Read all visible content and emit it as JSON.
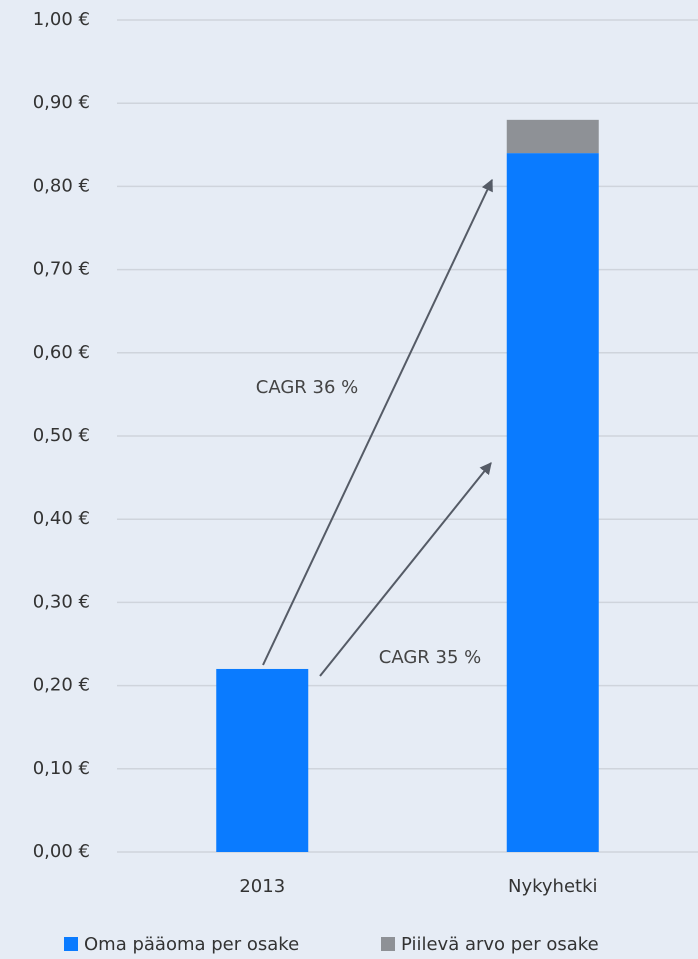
{
  "chart_data": {
    "type": "stacked_bar",
    "categories": [
      "2013",
      "Nykyhetki"
    ],
    "series": [
      {
        "name": "Oma pääoma per osake",
        "color": "#0a7bff",
        "values": [
          0.22,
          0.84
        ]
      },
      {
        "name": "Piilevä arvo per osake",
        "color": "#8e9196",
        "values": [
          0,
          0.04
        ]
      }
    ],
    "ylim": [
      0,
      1
    ],
    "yticks": [
      {
        "value": 0,
        "label": "0,00 €"
      },
      {
        "value": 0.1,
        "label": "0,10 €"
      },
      {
        "value": 0.2,
        "label": "0,20 €"
      },
      {
        "value": 0.3,
        "label": "0,30 €"
      },
      {
        "value": 0.4,
        "label": "0,40 €"
      },
      {
        "value": 0.5,
        "label": "0,50 €"
      },
      {
        "value": 0.6,
        "label": "0,60 €"
      },
      {
        "value": 0.7,
        "label": "0,70 €"
      },
      {
        "value": 0.8,
        "label": "0,80 €"
      },
      {
        "value": 0.9,
        "label": "0,90 €"
      },
      {
        "value": 1,
        "label": "1,00 €"
      }
    ],
    "grid": true,
    "annotations": [
      "CAGR 36 %",
      "CAGR 35 %"
    ]
  }
}
